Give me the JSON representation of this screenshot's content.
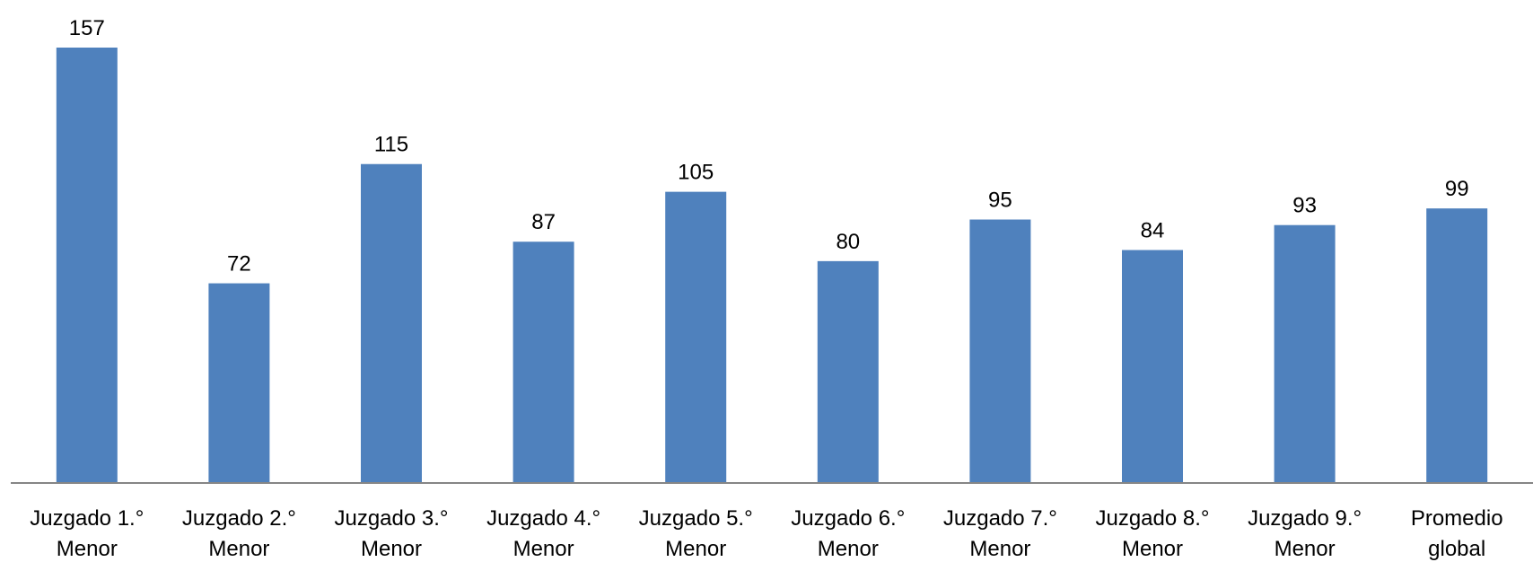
{
  "chart_data": {
    "type": "bar",
    "title": "",
    "xlabel": "",
    "ylabel": "",
    "categories": [
      [
        "Juzgado 1.°",
        "Menor"
      ],
      [
        "Juzgado 2.°",
        "Menor"
      ],
      [
        "Juzgado 3.°",
        "Menor"
      ],
      [
        "Juzgado 4.°",
        "Menor"
      ],
      [
        "Juzgado 5.°",
        "Menor"
      ],
      [
        "Juzgado 6.°",
        "Menor"
      ],
      [
        "Juzgado 7.°",
        "Menor"
      ],
      [
        "Juzgado 8.°",
        "Menor"
      ],
      [
        "Juzgado 9.°",
        "Menor"
      ],
      [
        "Promedio",
        "global"
      ]
    ],
    "values": [
      157,
      72,
      115,
      87,
      105,
      80,
      95,
      84,
      93,
      99
    ],
    "ylim": [
      0,
      157
    ],
    "grid": false,
    "legend": "none",
    "colors": {
      "bar": "#4f81bd",
      "axis": "#868686"
    }
  }
}
